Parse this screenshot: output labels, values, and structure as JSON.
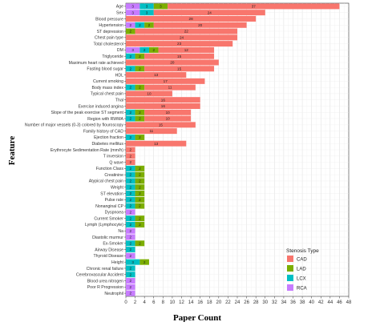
{
  "chart_data": {
    "type": "bar",
    "orientation": "horizontal",
    "stacked": true,
    "xlabel": "Paper Count",
    "ylabel": "Feature",
    "xlim": [
      0,
      48
    ],
    "xticks": [
      0,
      2,
      4,
      6,
      8,
      10,
      12,
      14,
      16,
      18,
      20,
      22,
      24,
      26,
      28,
      30,
      32,
      34,
      36,
      38,
      40,
      42,
      44,
      46,
      48
    ],
    "grid": true,
    "legend_title": "Stenosis Type",
    "legend_position": "bottom-right",
    "series_order": [
      "RCA",
      "LCX",
      "LAD",
      "CAD"
    ],
    "series": [
      {
        "name": "CAD",
        "color": "#F8766D"
      },
      {
        "name": "LAD",
        "color": "#7CAE00"
      },
      {
        "name": "LCX",
        "color": "#00BFC4"
      },
      {
        "name": "RCA",
        "color": "#C77CFF"
      }
    ],
    "categories": [
      "Age",
      "Sex",
      "Blood pressure",
      "Hypertension",
      "ST depression",
      "Chest pain type",
      "Total cholesterol",
      "DM",
      "Triglyceride",
      "Maximum heart rate achieved",
      "Fasting blood sugar",
      "HDL",
      "Current smoking",
      "Body mass index",
      "Typical chest pain",
      "Thal",
      "Exercise induced angina",
      "Slope of the peak exercise ST segment",
      "Region with RWMA",
      "Number of major vessels (0-3) colored by flouroscopy",
      "Family history of CAD",
      "Ejection fraction",
      "Diabetes mellitus",
      "Erythrocyte Sedimentation Rate (mm/h)",
      "T inversion",
      "Q wave",
      "Function Class",
      "Creatinine",
      "Atypical chest pain",
      "Weight",
      "ST elevation",
      "Pulse rate",
      "Nonanginal CP",
      "Dyspnoea",
      "Current Smoker",
      "Lymph (Lymphocyte)",
      "Na",
      "Diastolic murmur",
      "Ex-Smoker",
      "Airway Disease",
      "Thyroid Disease",
      "Height",
      "Chronic renal failure",
      "Cerebrovascular Accident",
      "Blood urea nitrogen",
      "Poor R Progression",
      "Neutrophil"
    ],
    "data": [
      {
        "RCA": 3,
        "LCX": 3,
        "LAD": 3,
        "CAD": 37
      },
      {
        "RCA": 3,
        "LCX": 3,
        "LAD": 0,
        "CAD": 24
      },
      {
        "RCA": 0,
        "LCX": 0,
        "LAD": 0,
        "CAD": 28
      },
      {
        "RCA": 2,
        "LCX": 2,
        "LAD": 2,
        "CAD": 20
      },
      {
        "RCA": 0,
        "LCX": 0,
        "LAD": 2,
        "CAD": 22
      },
      {
        "RCA": 0,
        "LCX": 0,
        "LAD": 0,
        "CAD": 24
      },
      {
        "RCA": 0,
        "LCX": 0,
        "LAD": 0,
        "CAD": 23
      },
      {
        "RCA": 3,
        "LCX": 2,
        "LAD": 2,
        "CAD": 12
      },
      {
        "RCA": 0,
        "LCX": 2,
        "LAD": 2,
        "CAD": 15
      },
      {
        "RCA": 0,
        "LCX": 0,
        "LAD": 0,
        "CAD": 20
      },
      {
        "RCA": 0,
        "LCX": 2,
        "LAD": 2,
        "CAD": 15
      },
      {
        "RCA": 0,
        "LCX": 0,
        "LAD": 0,
        "CAD": 13
      },
      {
        "RCA": 0,
        "LCX": 0,
        "LAD": 0,
        "CAD": 17
      },
      {
        "RCA": 0,
        "LCX": 2,
        "LAD": 2,
        "CAD": 11
      },
      {
        "RCA": 0,
        "LCX": 0,
        "LAD": 0,
        "CAD": 10
      },
      {
        "RCA": 0,
        "LCX": 0,
        "LAD": 0,
        "CAD": 16
      },
      {
        "RCA": 0,
        "LCX": 0,
        "LAD": 0,
        "CAD": 16
      },
      {
        "RCA": 0,
        "LCX": 2,
        "LAD": 2,
        "CAD": 10
      },
      {
        "RCA": 0,
        "LCX": 2,
        "LAD": 2,
        "CAD": 10
      },
      {
        "RCA": 0,
        "LCX": 0,
        "LAD": 0,
        "CAD": 15
      },
      {
        "RCA": 0,
        "LCX": 0,
        "LAD": 0,
        "CAD": 11
      },
      {
        "RCA": 0,
        "LCX": 2,
        "LAD": 2,
        "CAD": 0
      },
      {
        "RCA": 0,
        "LCX": 0,
        "LAD": 0,
        "CAD": 13
      },
      {
        "RCA": 0,
        "LCX": 0,
        "LAD": 0,
        "CAD": 2
      },
      {
        "RCA": 0,
        "LCX": 0,
        "LAD": 0,
        "CAD": 2
      },
      {
        "RCA": 0,
        "LCX": 0,
        "LAD": 0,
        "CAD": 2
      },
      {
        "RCA": 0,
        "LCX": 2,
        "LAD": 2,
        "CAD": 0
      },
      {
        "RCA": 0,
        "LCX": 2,
        "LAD": 2,
        "CAD": 0
      },
      {
        "RCA": 0,
        "LCX": 2,
        "LAD": 2,
        "CAD": 0
      },
      {
        "RCA": 0,
        "LCX": 2,
        "LAD": 2,
        "CAD": 0
      },
      {
        "RCA": 0,
        "LCX": 2,
        "LAD": 2,
        "CAD": 0
      },
      {
        "RCA": 0,
        "LCX": 2,
        "LAD": 2,
        "CAD": 0
      },
      {
        "RCA": 0,
        "LCX": 2,
        "LAD": 2,
        "CAD": 0
      },
      {
        "RCA": 2,
        "LCX": 0,
        "LAD": 0,
        "CAD": 0
      },
      {
        "RCA": 0,
        "LCX": 2,
        "LAD": 2,
        "CAD": 0
      },
      {
        "RCA": 0,
        "LCX": 2,
        "LAD": 2,
        "CAD": 0
      },
      {
        "RCA": 2,
        "LCX": 0,
        "LAD": 0,
        "CAD": 0
      },
      {
        "RCA": 2,
        "LCX": 0,
        "LAD": 0,
        "CAD": 0
      },
      {
        "RCA": 0,
        "LCX": 2,
        "LAD": 2,
        "CAD": 0
      },
      {
        "RCA": 0,
        "LCX": 2,
        "LAD": 0,
        "CAD": 0
      },
      {
        "RCA": 2,
        "LCX": 0,
        "LAD": 0,
        "CAD": 0
      },
      {
        "RCA": 0,
        "LCX": 3,
        "LAD": 2,
        "CAD": 0
      },
      {
        "RCA": 0,
        "LCX": 2,
        "LAD": 0,
        "CAD": 0
      },
      {
        "RCA": 0,
        "LCX": 2,
        "LAD": 0,
        "CAD": 0
      },
      {
        "RCA": 2,
        "LCX": 0,
        "LAD": 0,
        "CAD": 0
      },
      {
        "RCA": 2,
        "LCX": 0,
        "LAD": 0,
        "CAD": 0
      },
      {
        "RCA": 2,
        "LCX": 0,
        "LAD": 0,
        "CAD": 0
      }
    ]
  }
}
